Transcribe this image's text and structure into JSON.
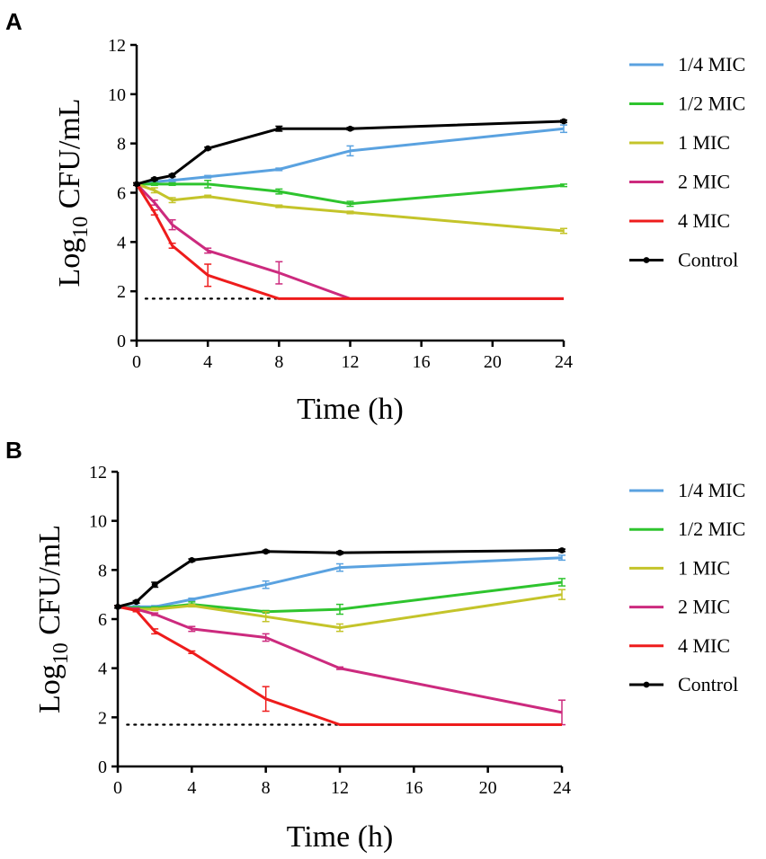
{
  "chart_data": [
    {
      "panel": "A",
      "type": "line",
      "title": "",
      "xlabel": "Time (h)",
      "ylabel_main": "Log",
      "ylabel_sub": "10",
      "ylabel_rest": " CFU/mL",
      "xlim": [
        0,
        24
      ],
      "ylim": [
        0,
        12
      ],
      "xticks": [
        0,
        4,
        8,
        12,
        16,
        20,
        24
      ],
      "yticks": [
        0,
        2,
        4,
        6,
        8,
        10,
        12
      ],
      "grid": false,
      "legend": "right",
      "detection_limit": {
        "value": 1.7,
        "x_start": 0.5,
        "x_end": 8,
        "style": "dotted"
      },
      "series": [
        {
          "name": "1/4 MIC",
          "color": "#5aa2e0",
          "x": [
            0,
            1,
            2,
            4,
            8,
            12,
            24
          ],
          "y": [
            6.35,
            6.45,
            6.5,
            6.65,
            6.95,
            7.7,
            8.6
          ],
          "err": [
            0.05,
            0.1,
            0.05,
            0.05,
            0.05,
            0.2,
            0.15
          ],
          "marker": false
        },
        {
          "name": "1/2 MIC",
          "color": "#2ec42e",
          "x": [
            0,
            1,
            2,
            4,
            8,
            12,
            24
          ],
          "y": [
            6.35,
            6.35,
            6.35,
            6.35,
            6.05,
            5.55,
            6.3
          ],
          "err": [
            0.05,
            0.05,
            0.05,
            0.15,
            0.1,
            0.1,
            0.05
          ],
          "marker": false
        },
        {
          "name": "1 MIC",
          "color": "#c4c42a",
          "x": [
            0,
            1,
            2,
            4,
            8,
            12,
            24
          ],
          "y": [
            6.35,
            6.1,
            5.7,
            5.85,
            5.45,
            5.2,
            4.45
          ],
          "err": [
            0.05,
            0.1,
            0.1,
            0.05,
            0.05,
            0.05,
            0.1
          ],
          "marker": false
        },
        {
          "name": "2 MIC",
          "color": "#cc2a7e",
          "x": [
            0,
            1,
            2,
            4,
            8,
            12,
            24
          ],
          "y": [
            6.35,
            5.6,
            4.7,
            3.65,
            2.75,
            1.7,
            1.7
          ],
          "err": [
            0.05,
            0.1,
            0.2,
            0.1,
            0.45,
            0,
            0
          ],
          "marker": false
        },
        {
          "name": "4 MIC",
          "color": "#ee1c1c",
          "x": [
            0,
            1,
            2,
            4,
            8,
            12,
            24
          ],
          "y": [
            6.35,
            5.2,
            3.85,
            2.65,
            1.7,
            1.7,
            1.7
          ],
          "err": [
            0.05,
            0.1,
            0.1,
            0.45,
            0,
            0,
            0
          ],
          "marker": false
        },
        {
          "name": "Control",
          "color": "#000000",
          "x": [
            0,
            1,
            2,
            4,
            8,
            12,
            24
          ],
          "y": [
            6.35,
            6.55,
            6.7,
            7.8,
            8.6,
            8.6,
            8.9
          ],
          "err": [
            0.05,
            0.05,
            0.05,
            0.05,
            0.1,
            0.05,
            0.05
          ],
          "marker": true
        }
      ]
    },
    {
      "panel": "B",
      "type": "line",
      "title": "",
      "xlabel": "Time (h)",
      "ylabel_main": "Log",
      "ylabel_sub": "10",
      "ylabel_rest": " CFU/mL",
      "xlim": [
        0,
        24
      ],
      "ylim": [
        0,
        12
      ],
      "xticks": [
        0,
        4,
        8,
        12,
        16,
        20,
        24
      ],
      "yticks": [
        0,
        2,
        4,
        6,
        8,
        10,
        12
      ],
      "grid": false,
      "legend": "right",
      "detection_limit": {
        "value": 1.7,
        "x_start": 0.5,
        "x_end": 12,
        "style": "dotted"
      },
      "series": [
        {
          "name": "1/4 MIC",
          "color": "#5aa2e0",
          "x": [
            0,
            1,
            2,
            4,
            8,
            12,
            24
          ],
          "y": [
            6.5,
            6.5,
            6.5,
            6.8,
            7.4,
            8.1,
            8.5
          ],
          "err": [
            0.05,
            0.05,
            0.05,
            0.05,
            0.15,
            0.15,
            0.1
          ],
          "marker": false
        },
        {
          "name": "1/2 MIC",
          "color": "#2ec42e",
          "x": [
            0,
            1,
            2,
            4,
            8,
            12,
            24
          ],
          "y": [
            6.5,
            6.45,
            6.45,
            6.6,
            6.3,
            6.4,
            7.5
          ],
          "err": [
            0.05,
            0.05,
            0.05,
            0.1,
            0.05,
            0.2,
            0.15
          ],
          "marker": false
        },
        {
          "name": "1 MIC",
          "color": "#c4c42a",
          "x": [
            0,
            1,
            2,
            4,
            8,
            12,
            24
          ],
          "y": [
            6.5,
            6.4,
            6.4,
            6.55,
            6.1,
            5.65,
            7.0
          ],
          "err": [
            0.05,
            0.05,
            0.05,
            0.05,
            0.2,
            0.15,
            0.2
          ],
          "marker": false
        },
        {
          "name": "2 MIC",
          "color": "#cc2a7e",
          "x": [
            0,
            1,
            2,
            4,
            8,
            12,
            24
          ],
          "y": [
            6.5,
            6.4,
            6.2,
            5.6,
            5.25,
            4.0,
            2.2
          ],
          "err": [
            0.05,
            0.05,
            0.05,
            0.1,
            0.15,
            0.05,
            0.5
          ],
          "marker": false
        },
        {
          "name": "4 MIC",
          "color": "#ee1c1c",
          "x": [
            0,
            1,
            2,
            4,
            8,
            12,
            24
          ],
          "y": [
            6.5,
            6.35,
            5.5,
            4.65,
            2.75,
            1.7,
            1.7
          ],
          "err": [
            0.05,
            0.05,
            0.1,
            0.05,
            0.5,
            0,
            0
          ],
          "marker": false
        },
        {
          "name": "Control",
          "color": "#000000",
          "x": [
            0,
            1,
            2,
            4,
            8,
            12,
            24
          ],
          "y": [
            6.5,
            6.7,
            7.4,
            8.4,
            8.75,
            8.7,
            8.8
          ],
          "err": [
            0.05,
            0.05,
            0.1,
            0.05,
            0.05,
            0.05,
            0.05
          ],
          "marker": true
        }
      ]
    }
  ]
}
